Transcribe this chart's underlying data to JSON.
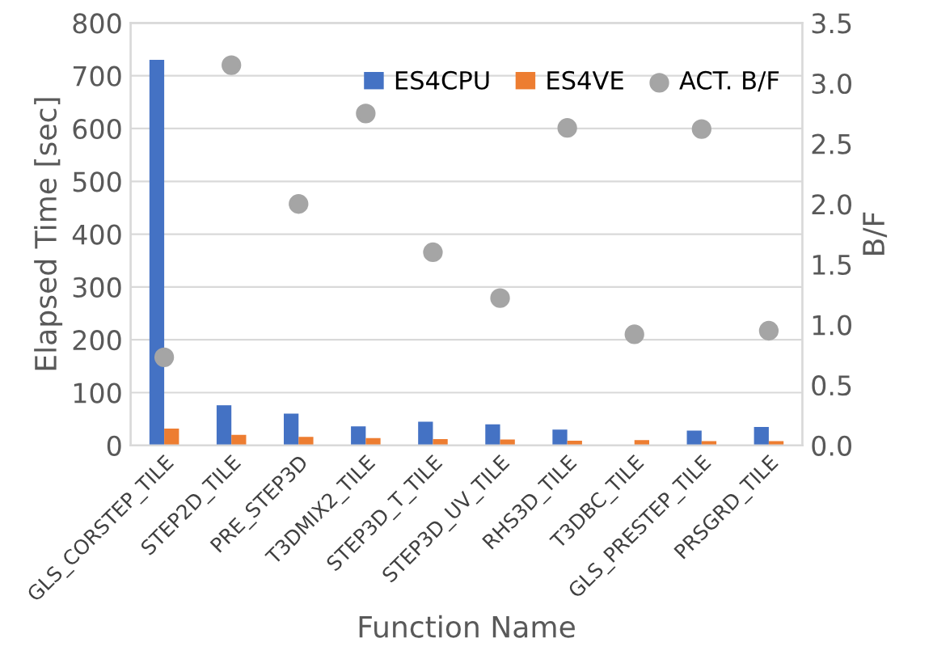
{
  "chart_data": {
    "type": "bar",
    "xlabel": "Function Name",
    "ylabel": "Elapsed Time [sec]",
    "y2label": "B/F",
    "categories": [
      "GLS_CORSTEP_TILE",
      "STEP2D_TILE",
      "PRE_STEP3D",
      "T3DMIX2_TILE",
      "STEP3D_T_TILE",
      "STEP3D_UV_TILE",
      "RHS3D_TILE",
      "T3DBC_TILE",
      "GLS_PRESTEP_TILE",
      "PRSGRD_TILE"
    ],
    "series": [
      {
        "name": "ES4CPU",
        "color": "#4472c4",
        "values": [
          730,
          76,
          60,
          36,
          45,
          40,
          30,
          null,
          28,
          35
        ]
      },
      {
        "name": "ES4VE",
        "color": "#ed7d31",
        "values": [
          32,
          20,
          16,
          14,
          12,
          11,
          9,
          10,
          8,
          8
        ]
      },
      {
        "name": "ACT. B/F",
        "type": "scatter",
        "axis": "y2",
        "color": "#a5a5a5",
        "marker": "circle",
        "values": [
          0.73,
          3.15,
          2.0,
          2.75,
          1.6,
          1.22,
          2.63,
          0.92,
          2.62,
          0.95
        ]
      }
    ],
    "ylim": [
      0,
      800
    ],
    "yticks": [
      0,
      100,
      200,
      300,
      400,
      500,
      600,
      700,
      800
    ],
    "y2lim": [
      0,
      3.5
    ],
    "y2ticks": [
      {
        "value": 0,
        "label": "0.0"
      },
      {
        "value": 0.5,
        "label": "0.5"
      },
      {
        "value": 1,
        "label": "1.0"
      },
      {
        "value": 1.5,
        "label": "1.5"
      },
      {
        "value": 2,
        "label": "2.0"
      },
      {
        "value": 2.5,
        "label": "2.5"
      },
      {
        "value": 3,
        "label": "3.0"
      },
      {
        "value": 3.5,
        "label": "3.5"
      }
    ],
    "grid": "y",
    "legend": "top right"
  }
}
